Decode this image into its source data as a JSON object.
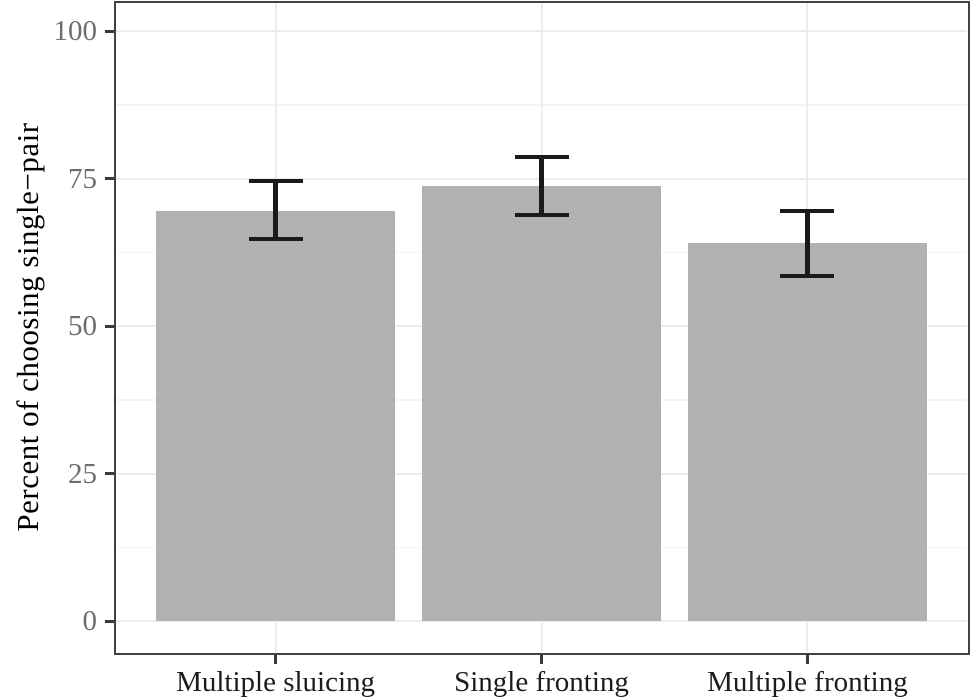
{
  "chart_data": {
    "type": "bar",
    "title": "",
    "xlabel": "",
    "ylabel": "Percent of choosing single−pair",
    "categories": [
      "Multiple sluicing",
      "Single fronting",
      "Multiple fronting"
    ],
    "values": [
      69.5,
      73.8,
      64.0
    ],
    "error_bars": {
      "lower": [
        64.8,
        68.9,
        58.5
      ],
      "upper": [
        74.5,
        78.6,
        69.5
      ]
    },
    "ylim": [
      0,
      100
    ],
    "y_major_ticks": [
      0,
      25,
      50,
      75,
      100
    ],
    "y_minor_ticks": [
      12.5,
      37.5,
      62.5,
      87.5
    ],
    "grid": "major and minor horizontal, major vertical at category centers",
    "legend": false,
    "bar_width_fraction": 0.9,
    "colors": {
      "bar_fill": "#b1b1b3",
      "error_bar": "#1a1a1a",
      "panel_border": "#424242",
      "grid_major": "#ececec",
      "grid_minor": "#f4f4f4",
      "tick_mark": "#3a3a3a",
      "y_tick_label": "#6e6e6e",
      "x_tick_label": "#1c1c1c",
      "axis_title": "#000000",
      "background": "#ffffff"
    }
  }
}
